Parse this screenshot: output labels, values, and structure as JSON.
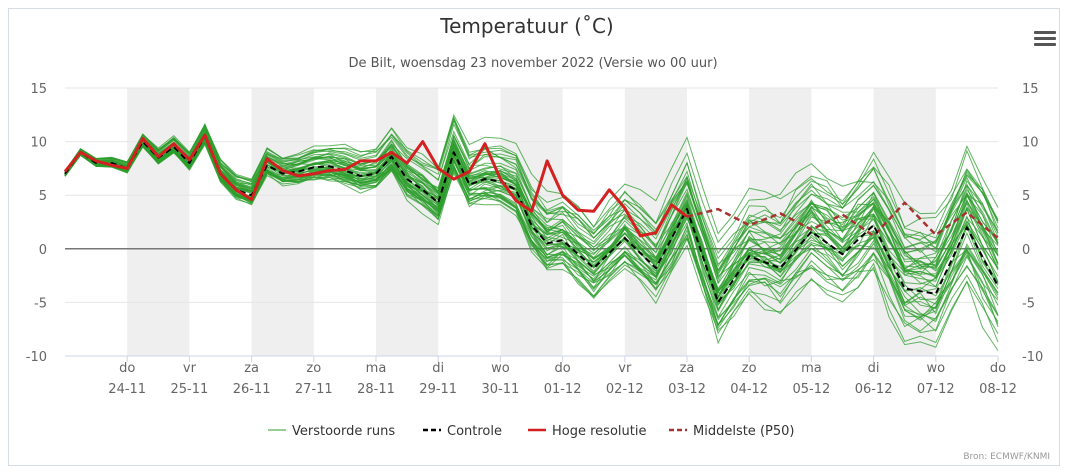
{
  "menu": {
    "icon": "hamburger-menu-icon"
  },
  "chart_data": {
    "type": "line",
    "title": "Temperatuur (˚C)",
    "subtitle": "De Bilt, woensdag 23 november 2022 (Versie wo 00 uur)",
    "credit": "Bron: ECMWF/KNMI",
    "ylim": [
      -10,
      15
    ],
    "yticks": [
      15,
      10,
      5,
      0,
      -5,
      -10
    ],
    "grid": true,
    "legend_position": "bottom",
    "x_start": "2022-11-23 00:00",
    "x_end": "2022-12-08 00:00",
    "x_tick_labels": [
      {
        "day": "do",
        "date": "24-11"
      },
      {
        "day": "vr",
        "date": "25-11"
      },
      {
        "day": "za",
        "date": "26-11"
      },
      {
        "day": "zo",
        "date": "27-11"
      },
      {
        "day": "ma",
        "date": "28-11"
      },
      {
        "day": "di",
        "date": "29-11"
      },
      {
        "day": "wo",
        "date": "30-11"
      },
      {
        "day": "do",
        "date": "01-12"
      },
      {
        "day": "vr",
        "date": "02-12"
      },
      {
        "day": "za",
        "date": "03-12"
      },
      {
        "day": "zo",
        "date": "04-12"
      },
      {
        "day": "ma",
        "date": "05-12"
      },
      {
        "day": "di",
        "date": "06-12"
      },
      {
        "day": "wo",
        "date": "07-12"
      },
      {
        "day": "do",
        "date": "08-12"
      }
    ],
    "legend": [
      {
        "name": "Verstoorde runs",
        "style": "solid",
        "color": "#2e9e2e"
      },
      {
        "name": "Controle",
        "style": "dashed",
        "color": "#000000"
      },
      {
        "name": "Hoge resolutie",
        "style": "solid",
        "color": "#d42020"
      },
      {
        "name": "Middelste (P50)",
        "style": "dashed",
        "color": "#a83232"
      }
    ],
    "series": [
      {
        "name": "Hoge resolutie",
        "color": "#d42020",
        "x": [
          "2022-11-23 00:00",
          "2022-11-23 06:00",
          "2022-11-23 12:00",
          "2022-11-23 18:00",
          "2022-11-24 00:00",
          "2022-11-24 06:00",
          "2022-11-24 12:00",
          "2022-11-24 18:00",
          "2022-11-25 00:00",
          "2022-11-25 06:00",
          "2022-11-25 12:00",
          "2022-11-25 18:00",
          "2022-11-26 00:00",
          "2022-11-26 06:00",
          "2022-11-26 12:00",
          "2022-11-26 18:00",
          "2022-11-27 00:00",
          "2022-11-27 06:00",
          "2022-11-27 12:00",
          "2022-11-27 18:00",
          "2022-11-28 00:00",
          "2022-11-28 06:00",
          "2022-11-28 12:00",
          "2022-11-28 18:00",
          "2022-11-29 00:00",
          "2022-11-29 06:00",
          "2022-11-29 12:00",
          "2022-11-29 18:00",
          "2022-11-30 00:00",
          "2022-11-30 06:00",
          "2022-11-30 12:00",
          "2022-11-30 18:00",
          "2022-12-01 00:00",
          "2022-12-01 06:00",
          "2022-12-01 12:00",
          "2022-12-01 18:00",
          "2022-12-02 00:00",
          "2022-12-02 06:00",
          "2022-12-02 12:00",
          "2022-12-02 18:00",
          "2022-12-03 00:00"
        ],
        "values": [
          7.2,
          9.0,
          8.2,
          7.8,
          7.5,
          10.3,
          8.6,
          9.8,
          8.3,
          10.6,
          7.0,
          5.5,
          4.6,
          8.4,
          7.3,
          6.8,
          7.0,
          7.3,
          7.4,
          8.2,
          8.2,
          9.0,
          8.0,
          10.0,
          7.5,
          6.5,
          7.2,
          9.8,
          6.5,
          4.5,
          3.5,
          8.2,
          5.0,
          3.6,
          3.5,
          5.5,
          3.8,
          1.2,
          1.5,
          4.1,
          3.0
        ]
      },
      {
        "name": "Controle",
        "color": "#000000",
        "x": [
          "2022-11-23 00:00",
          "2022-11-23 06:00",
          "2022-11-23 12:00",
          "2022-11-23 18:00",
          "2022-11-24 00:00",
          "2022-11-24 06:00",
          "2022-11-24 12:00",
          "2022-11-24 18:00",
          "2022-11-25 00:00",
          "2022-11-25 06:00",
          "2022-11-25 12:00",
          "2022-11-25 18:00",
          "2022-11-26 00:00",
          "2022-11-26 06:00",
          "2022-11-26 12:00",
          "2022-11-26 18:00",
          "2022-11-27 00:00",
          "2022-11-27 06:00",
          "2022-11-27 12:00",
          "2022-11-27 18:00",
          "2022-11-28 00:00",
          "2022-11-28 06:00",
          "2022-11-28 12:00",
          "2022-11-28 18:00",
          "2022-11-29 00:00",
          "2022-11-29 06:00",
          "2022-11-29 12:00",
          "2022-11-29 18:00",
          "2022-11-30 00:00",
          "2022-11-30 06:00",
          "2022-11-30 12:00",
          "2022-11-30 18:00",
          "2022-12-01 00:00",
          "2022-12-01 12:00",
          "2022-12-02 00:00",
          "2022-12-02 12:00",
          "2022-12-03 00:00",
          "2022-12-03 12:00",
          "2022-12-04 00:00",
          "2022-12-04 12:00",
          "2022-12-05 00:00",
          "2022-12-05 12:00",
          "2022-12-06 00:00",
          "2022-12-06 12:00",
          "2022-12-07 00:00",
          "2022-12-07 12:00",
          "2022-12-08 00:00"
        ],
        "values": [
          7.0,
          9.0,
          8.0,
          8.0,
          7.5,
          10.0,
          8.5,
          9.5,
          8.0,
          10.5,
          7.0,
          5.5,
          5.0,
          7.8,
          7.0,
          7.2,
          7.6,
          7.7,
          7.3,
          6.8,
          7.0,
          8.6,
          6.5,
          5.5,
          4.3,
          9.0,
          6.0,
          6.5,
          6.3,
          5.5,
          2.2,
          0.5,
          0.8,
          -1.8,
          1.0,
          -1.8,
          3.7,
          -5.0,
          -0.7,
          -1.8,
          1.6,
          -0.5,
          2.2,
          -3.7,
          -4.2,
          2.0,
          -3.5
        ]
      },
      {
        "name": "Middelste (P50)",
        "color": "#a83232",
        "x": [
          "2022-12-03 00:00",
          "2022-12-03 12:00",
          "2022-12-04 00:00",
          "2022-12-04 12:00",
          "2022-12-05 00:00",
          "2022-12-05 12:00",
          "2022-12-06 00:00",
          "2022-12-06 12:00",
          "2022-12-07 00:00",
          "2022-12-07 12:00",
          "2022-12-08 00:00"
        ],
        "values": [
          3.0,
          3.7,
          2.2,
          3.3,
          1.8,
          3.2,
          1.2,
          4.3,
          1.3,
          3.4,
          1.0
        ]
      }
    ]
  }
}
